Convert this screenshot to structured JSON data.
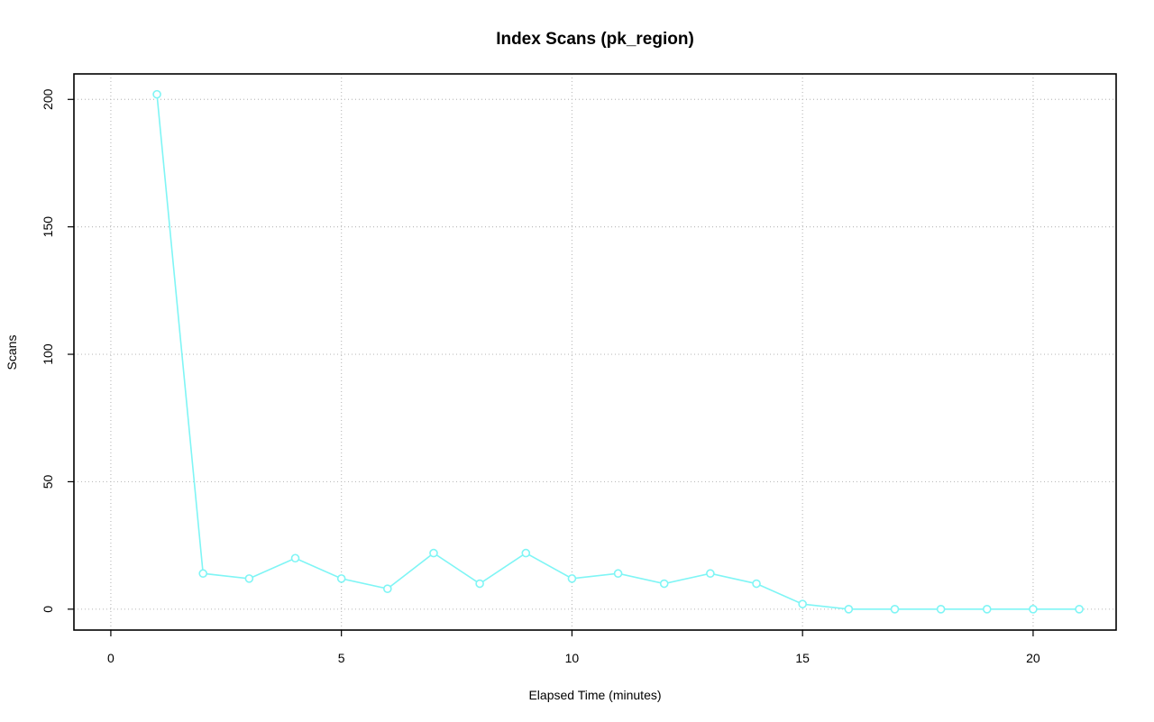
{
  "chart_data": {
    "type": "line",
    "title": "Index Scans (pk_region)",
    "xlabel": "Elapsed Time (minutes)",
    "ylabel": "Scans",
    "xlim": [
      -0.8,
      21.8
    ],
    "ylim": [
      -8.2,
      210
    ],
    "xticks": [
      0,
      5,
      10,
      15,
      20
    ],
    "yticks": [
      0,
      50,
      100,
      150,
      200
    ],
    "grid": true,
    "legend": "none",
    "series": [
      {
        "color": "#7ff5f5",
        "marker": "circle-open",
        "x": [
          1,
          2,
          3,
          4,
          5,
          6,
          7,
          8,
          9,
          10,
          11,
          12,
          13,
          14,
          15,
          16,
          17,
          18,
          19,
          20,
          21
        ],
        "y": [
          202,
          14,
          12,
          20,
          12,
          8,
          22,
          10,
          22,
          12,
          14,
          10,
          14,
          10,
          2,
          0,
          0,
          0,
          0,
          0,
          0
        ]
      }
    ]
  }
}
